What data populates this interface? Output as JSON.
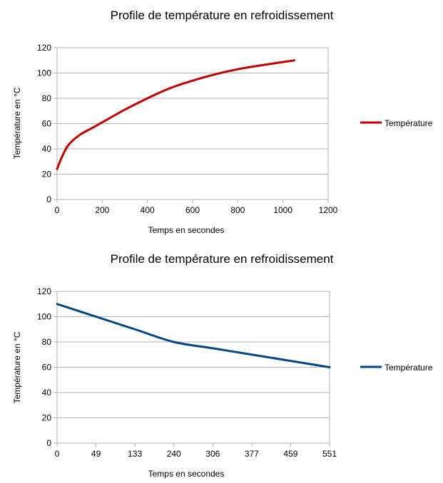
{
  "chart_data": [
    {
      "type": "line",
      "title": "Profile de température en refroidissement",
      "xlabel": "Temps en secondes",
      "ylabel": "Température en °C",
      "xlim": [
        0,
        1200
      ],
      "ylim": [
        0,
        120
      ],
      "x_ticks": [
        "0",
        "200",
        "400",
        "600",
        "800",
        "1000",
        "1200"
      ],
      "y_ticks": [
        "0",
        "20",
        "40",
        "60",
        "80",
        "100",
        "120"
      ],
      "grid": true,
      "legend_position": "right",
      "series": [
        {
          "name": "Température",
          "color": "#c00000",
          "x": [
            0,
            20,
            50,
            100,
            150,
            200,
            300,
            400,
            500,
            600,
            700,
            800,
            900,
            1050
          ],
          "y": [
            24,
            33,
            43,
            51,
            56,
            61,
            71,
            80,
            88,
            94,
            99,
            103,
            106,
            110
          ]
        }
      ]
    },
    {
      "type": "line",
      "title": "Profile de température en refroidissement",
      "xlabel": "Temps en secondes",
      "ylabel": "Température en °C",
      "categories": [
        "0",
        "49",
        "133",
        "240",
        "306",
        "377",
        "459",
        "551"
      ],
      "ylim": [
        0,
        120
      ],
      "y_ticks": [
        "0",
        "20",
        "40",
        "60",
        "80",
        "100",
        "120"
      ],
      "grid": true,
      "legend_position": "right",
      "series": [
        {
          "name": "Température",
          "color": "#004586",
          "values": [
            110,
            100,
            90,
            80,
            75,
            70,
            65,
            60
          ]
        }
      ]
    }
  ]
}
